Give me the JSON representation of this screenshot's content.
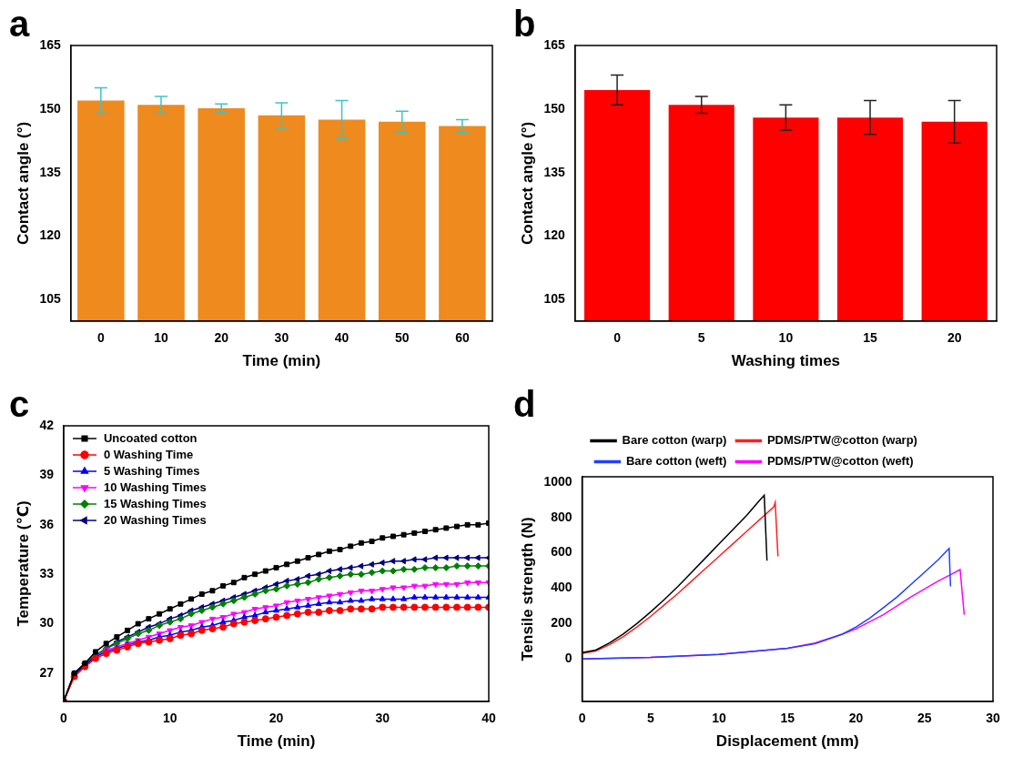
{
  "chart_data": [
    {
      "panel": "a",
      "type": "bar",
      "categories": [
        0,
        10,
        20,
        30,
        40,
        50,
        60
      ],
      "values": [
        152,
        151,
        150.2,
        148.5,
        147.5,
        147,
        146
      ],
      "errors": [
        3,
        2,
        1,
        3,
        4.5,
        2.5,
        1.5
      ],
      "color": "#ee8a1e",
      "x_label": "Time (min)",
      "y_label": "Contact angle (°)",
      "ylim": [
        100,
        165
      ],
      "yticks": [
        105,
        120,
        135,
        150,
        165
      ],
      "grid": false
    },
    {
      "panel": "b",
      "type": "bar",
      "categories": [
        0,
        5,
        10,
        15,
        20
      ],
      "values": [
        154.5,
        151,
        148,
        148,
        147
      ],
      "errors": [
        3.5,
        2,
        3,
        4,
        5
      ],
      "color": "#ff0000",
      "x_label": "Washing times",
      "y_label": "Contact angle (°)",
      "ylim": [
        100,
        165
      ],
      "yticks": [
        105,
        120,
        135,
        150,
        165
      ],
      "grid": false
    },
    {
      "panel": "c",
      "type": "line",
      "x_label": "Time (min)",
      "y_label": "Temperature (℃)",
      "x": [
        0,
        1,
        2,
        3,
        4,
        5,
        6,
        7,
        8,
        9,
        10,
        11,
        12,
        13,
        14,
        15,
        16,
        17,
        18,
        19,
        20,
        21,
        22,
        23,
        24,
        25,
        26,
        27,
        28,
        29,
        30,
        31,
        32,
        33,
        34,
        35,
        36,
        37,
        38,
        39,
        40
      ],
      "series": [
        {
          "name": "Uncoated cotton",
          "color": "#000000",
          "marker": "square",
          "values": [
            25.3,
            27.0,
            27.6,
            28.3,
            28.8,
            29.2,
            29.6,
            30.0,
            30.3,
            30.6,
            30.9,
            31.2,
            31.5,
            31.8,
            32.0,
            32.3,
            32.5,
            32.8,
            33.0,
            33.2,
            33.4,
            33.6,
            33.8,
            34.0,
            34.2,
            34.4,
            34.5,
            34.7,
            34.9,
            35.0,
            35.2,
            35.3,
            35.4,
            35.5,
            35.6,
            35.7,
            35.8,
            35.9,
            36.0,
            36.0,
            36.1
          ]
        },
        {
          "name": "0 Washing Time",
          "color": "#ff0000",
          "marker": "circle",
          "values": [
            25.3,
            26.8,
            27.4,
            27.9,
            28.2,
            28.4,
            28.6,
            28.8,
            28.9,
            29.0,
            29.1,
            29.3,
            29.4,
            29.6,
            29.7,
            29.8,
            30.0,
            30.1,
            30.2,
            30.3,
            30.4,
            30.5,
            30.6,
            30.7,
            30.7,
            30.8,
            30.8,
            30.9,
            30.9,
            30.9,
            31.0,
            31.0,
            31.0,
            31.0,
            31.0,
            31.0,
            31.0,
            31.0,
            31.0,
            31.0,
            31.0
          ]
        },
        {
          "name": "5 Washing Times",
          "color": "#0000ff",
          "marker": "triangle-up",
          "values": [
            25.3,
            26.9,
            27.5,
            28.0,
            28.3,
            28.5,
            28.7,
            28.9,
            29.0,
            29.2,
            29.3,
            29.5,
            29.6,
            29.8,
            29.9,
            30.1,
            30.2,
            30.4,
            30.5,
            30.7,
            30.8,
            30.9,
            31.0,
            31.1,
            31.2,
            31.3,
            31.3,
            31.4,
            31.4,
            31.5,
            31.5,
            31.5,
            31.5,
            31.6,
            31.6,
            31.6,
            31.6,
            31.6,
            31.6,
            31.6,
            31.6
          ]
        },
        {
          "name": "10 Washing Times",
          "color": "#ff00ff",
          "marker": "triangle-down",
          "values": [
            25.3,
            26.9,
            27.5,
            28.0,
            28.4,
            28.6,
            28.8,
            29.0,
            29.2,
            29.4,
            29.6,
            29.8,
            29.9,
            30.1,
            30.3,
            30.4,
            30.6,
            30.7,
            30.9,
            31.0,
            31.1,
            31.3,
            31.4,
            31.5,
            31.6,
            31.7,
            31.8,
            31.9,
            32.0,
            32.0,
            32.1,
            32.2,
            32.2,
            32.3,
            32.3,
            32.4,
            32.4,
            32.4,
            32.5,
            32.5,
            32.5
          ]
        },
        {
          "name": "15 Washing Times",
          "color": "#008000",
          "marker": "diamond",
          "values": [
            25.3,
            27.0,
            27.6,
            28.1,
            28.5,
            28.8,
            29.1,
            29.4,
            29.6,
            29.9,
            30.1,
            30.3,
            30.6,
            30.8,
            31.0,
            31.2,
            31.4,
            31.6,
            31.8,
            32.0,
            32.1,
            32.3,
            32.4,
            32.5,
            32.7,
            32.8,
            32.9,
            33.0,
            33.0,
            33.1,
            33.2,
            33.2,
            33.3,
            33.3,
            33.4,
            33.4,
            33.4,
            33.5,
            33.5,
            33.5,
            33.5
          ]
        },
        {
          "name": "20 Washing Times",
          "color": "#000080",
          "marker": "triangle-left",
          "values": [
            25.3,
            27.0,
            27.6,
            28.1,
            28.5,
            28.9,
            29.2,
            29.5,
            29.8,
            30.0,
            30.3,
            30.5,
            30.8,
            31.0,
            31.2,
            31.4,
            31.6,
            31.8,
            32.0,
            32.2,
            32.4,
            32.6,
            32.7,
            32.9,
            33.0,
            33.2,
            33.3,
            33.4,
            33.5,
            33.6,
            33.7,
            33.8,
            33.8,
            33.9,
            33.9,
            34.0,
            34.0,
            34.0,
            34.0,
            34.0,
            34.0
          ]
        }
      ],
      "xlim": [
        0,
        40
      ],
      "xticks": [
        0,
        10,
        20,
        30,
        40
      ],
      "ylim": [
        25.3,
        42
      ],
      "yticks": [
        27,
        30,
        33,
        36,
        39,
        42
      ],
      "legend": "top-left",
      "grid": false
    },
    {
      "panel": "d",
      "type": "line",
      "x_label": "Displacement (mm)",
      "y_label": "Tensile strength (N)",
      "series": [
        {
          "name": "Bare cotton (warp)",
          "color": "#000000",
          "marker": "none",
          "x": [
            0,
            1,
            2,
            3,
            4,
            5,
            6,
            7,
            8,
            9,
            10,
            11,
            12,
            13,
            13.3,
            13.5
          ],
          "values": [
            35,
            50,
            90,
            140,
            200,
            265,
            335,
            410,
            490,
            570,
            650,
            730,
            810,
            900,
            925,
            555
          ]
        },
        {
          "name": "PDMS/PTW@cotton (warp)",
          "color": "#ff2020",
          "marker": "none",
          "x": [
            0,
            1,
            2,
            3,
            4,
            5,
            6,
            7,
            8,
            9,
            10,
            11,
            12,
            13,
            14,
            14.1,
            14.3
          ],
          "values": [
            30,
            45,
            80,
            125,
            180,
            240,
            305,
            370,
            440,
            510,
            580,
            650,
            720,
            790,
            860,
            885,
            580
          ]
        },
        {
          "name": "Bare cotton (weft)",
          "color": "#2040ff",
          "marker": "none",
          "x": [
            0,
            5,
            10,
            15,
            17,
            19,
            20,
            21,
            22,
            23,
            24,
            25,
            26,
            26.8,
            26.9
          ],
          "values": [
            0,
            8,
            25,
            60,
            85,
            140,
            180,
            230,
            290,
            350,
            420,
            490,
            560,
            625,
            410
          ]
        },
        {
          "name": "PDMS/PTW@cotton (weft)",
          "color": "#ff00ff",
          "marker": "none",
          "x": [
            0,
            5,
            10,
            15,
            17,
            19,
            20,
            21,
            22,
            23,
            24,
            25,
            26,
            27,
            27.6,
            27.9
          ],
          "values": [
            0,
            8,
            25,
            60,
            90,
            140,
            170,
            210,
            250,
            300,
            350,
            395,
            440,
            480,
            505,
            250
          ]
        }
      ],
      "xlim": [
        0,
        30
      ],
      "xticks": [
        0,
        5,
        10,
        15,
        20,
        25,
        30
      ],
      "ylim": [
        -240,
        1030
      ],
      "yticks": [
        0,
        200,
        400,
        600,
        800,
        1000
      ],
      "legend": "top",
      "grid": false
    }
  ]
}
